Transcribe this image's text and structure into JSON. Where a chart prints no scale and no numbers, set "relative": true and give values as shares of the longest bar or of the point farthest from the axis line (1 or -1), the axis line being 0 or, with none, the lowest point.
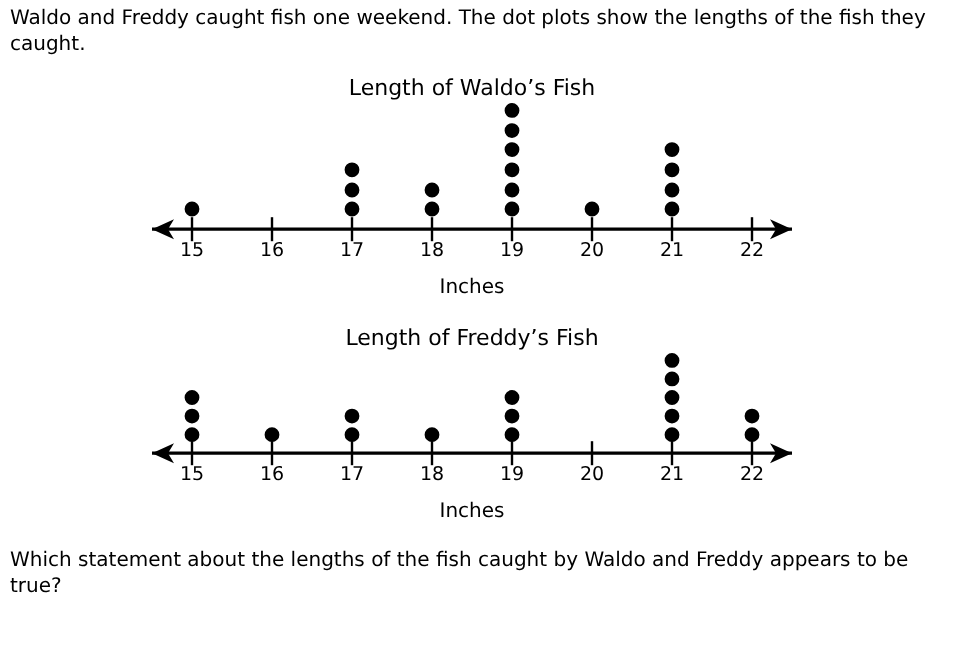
{
  "chart_data": [
    {
      "type": "scatter",
      "title": "Length of Waldo’s Fish",
      "xlabel": "Inches",
      "annotations": [
        "Waldo and Freddy caught fish one weekend. The dot plots show the lengths of the fish they caught."
      ],
      "series": [
        {
          "color": "#000000",
          "x": [
            15,
            17,
            17,
            17,
            18,
            18,
            19,
            19,
            19,
            19,
            19,
            19,
            20,
            21,
            21,
            21,
            21
          ],
          "values": [
            0.17,
            0.17,
            0.33,
            0.5,
            0.17,
            0.33,
            0.17,
            0.33,
            0.5,
            0.67,
            0.83,
            1,
            0.17,
            0.17,
            0.33,
            0.5,
            0.67
          ]
        }
      ],
      "relative": true,
      "xlim": [
        14.5,
        22.5
      ],
      "xticks": [
        15,
        16,
        17,
        18,
        19,
        20,
        21,
        22
      ],
      "tick_labels": "x",
      "grid": false,
      "legend": false,
      "marker": "circle"
    },
    {
      "type": "scatter",
      "title": "Length of Freddy’s Fish",
      "xlabel": "Inches",
      "annotations": [
        "Which statement about the lengths of the fish caught by Waldo and Freddy appears to be true?"
      ],
      "series": [
        {
          "color": "#000000",
          "x": [
            15,
            15,
            15,
            16,
            17,
            17,
            18,
            19,
            19,
            19,
            21,
            21,
            21,
            21,
            21,
            22,
            22
          ],
          "values": [
            0.2,
            0.4,
            0.6,
            0.2,
            0.2,
            0.4,
            0.2,
            0.2,
            0.4,
            0.6,
            0.2,
            0.4,
            0.6,
            0.8,
            1,
            0.2,
            0.4
          ]
        }
      ],
      "relative": true,
      "xlim": [
        14.5,
        22.5
      ],
      "xticks": [
        15,
        16,
        17,
        18,
        19,
        20,
        21,
        22
      ],
      "tick_labels": "x",
      "grid": false,
      "legend": false,
      "marker": "circle"
    }
  ]
}
